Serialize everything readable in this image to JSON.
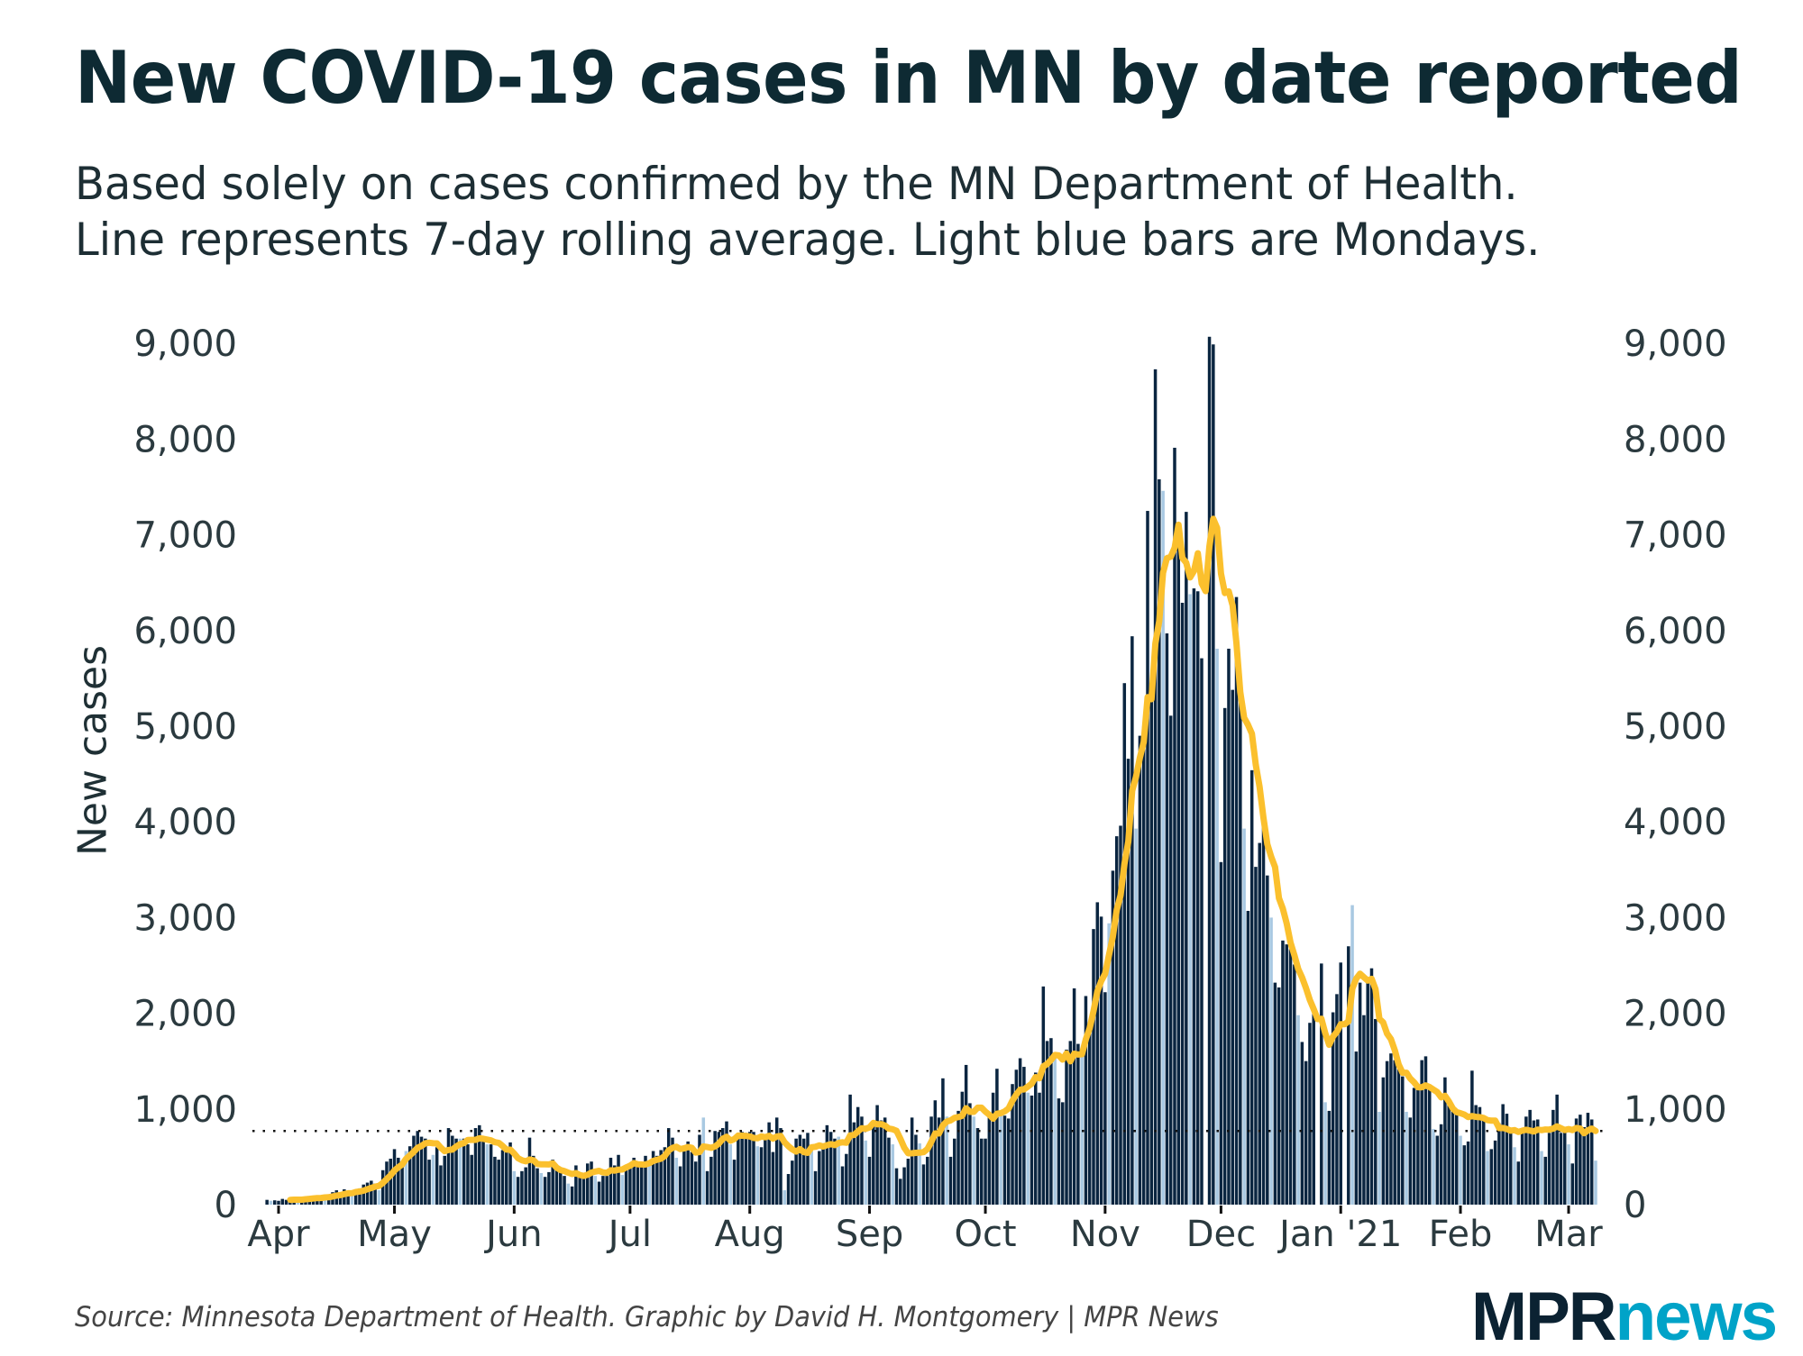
{
  "title": "New COVID-19 cases in MN by date reported",
  "subtitle_lines": [
    "Based solely on cases confirmed by the MN Department of Health.",
    "Line represents 7-day rolling average. Light blue bars are Mondays."
  ],
  "source": "Source: Minnesota Department of Health. Graphic by David H. Montgomery | MPR News",
  "logo": {
    "part1": "MPR",
    "part2": "news"
  },
  "colors": {
    "bar": "#0a2540",
    "monday_bar": "#a9c9e2",
    "line": "#fbc02d",
    "title": "#0e2a33",
    "logo_dark": "#0b2232",
    "logo_accent": "#00a3c8"
  },
  "chart_data": {
    "type": "bar",
    "title": "New COVID-19 cases in MN by date reported",
    "ylabel": "New cases",
    "xlabel": "",
    "ylim": [
      0,
      9000
    ],
    "grid": false,
    "y_ticks": [
      {
        "value": 0,
        "label": "0"
      },
      {
        "value": 1000,
        "label": "1,000"
      },
      {
        "value": 2000,
        "label": "2,000"
      },
      {
        "value": 3000,
        "label": "3,000"
      },
      {
        "value": 4000,
        "label": "4,000"
      },
      {
        "value": 5000,
        "label": "5,000"
      },
      {
        "value": 6000,
        "label": "6,000"
      },
      {
        "value": 7000,
        "label": "7,000"
      },
      {
        "value": 8000,
        "label": "8,000"
      },
      {
        "value": 9000,
        "label": "9,000"
      }
    ],
    "x_ticks": [
      {
        "date": "2020-04-01",
        "label": "Apr"
      },
      {
        "date": "2020-05-01",
        "label": "May"
      },
      {
        "date": "2020-06-01",
        "label": "Jun"
      },
      {
        "date": "2020-07-01",
        "label": "Jul"
      },
      {
        "date": "2020-08-01",
        "label": "Aug"
      },
      {
        "date": "2020-09-01",
        "label": "Sep"
      },
      {
        "date": "2020-10-01",
        "label": "Oct"
      },
      {
        "date": "2020-11-01",
        "label": "Nov"
      },
      {
        "date": "2020-12-01",
        "label": "Dec"
      },
      {
        "date": "2021-01-01",
        "label": "Jan '21"
      },
      {
        "date": "2021-02-01",
        "label": "Feb"
      },
      {
        "date": "2021-03-01",
        "label": "Mar"
      }
    ],
    "x_start": "2020-03-29",
    "x_end": "2021-03-08",
    "reference_line_value": 770,
    "series": [
      {
        "kind": "daily bars (Mondays light blue)",
        "values": [
          50,
          40,
          45,
          40,
          60,
          50,
          65,
          60,
          40,
          50,
          70,
          90,
          80,
          90,
          70,
          80,
          60,
          130,
          150,
          120,
          160,
          130,
          90,
          140,
          170,
          210,
          230,
          250,
          220,
          150,
          360,
          450,
          480,
          580,
          490,
          430,
          560,
          610,
          720,
          770,
          710,
          690,
          470,
          520,
          600,
          410,
          510,
          800,
          720,
          690,
          690,
          690,
          630,
          520,
          800,
          830,
          660,
          630,
          630,
          500,
          470,
          570,
          570,
          650,
          350,
          290,
          350,
          390,
          700,
          510,
          380,
          330,
          290,
          340,
          470,
          380,
          340,
          300,
          220,
          190,
          410,
          330,
          310,
          430,
          450,
          300,
          240,
          300,
          300,
          490,
          410,
          520,
          310,
          390,
          430,
          490,
          400,
          400,
          510,
          410,
          560,
          510,
          570,
          600,
          800,
          700,
          490,
          400,
          560,
          660,
          550,
          450,
          730,
          910,
          350,
          500,
          770,
          760,
          800,
          870,
          630,
          470,
          750,
          760,
          750,
          760,
          760,
          610,
          600,
          690,
          860,
          550,
          910,
          800,
          150,
          320,
          460,
          690,
          730,
          690,
          750,
          560,
          350,
          560,
          610,
          830,
          760,
          690,
          710,
          400,
          530,
          1150,
          860,
          1020,
          920,
          670,
          500,
          860,
          1040,
          880,
          910,
          700,
          630,
          380,
          270,
          390,
          480,
          910,
          730,
          640,
          420,
          500,
          920,
          1090,
          910,
          1320,
          920,
          500,
          690,
          980,
          1180,
          1460,
          1060,
          920,
          800,
          690,
          690,
          960,
          1170,
          1420,
          960,
          930,
          900,
          1260,
          1410,
          1530,
          1440,
          1170,
          1140,
          1380,
          1170,
          2280,
          1710,
          1740,
          1530,
          1110,
          1070,
          1620,
          1710,
          2260,
          1680,
          1560,
          2180,
          1890,
          2880,
          3160,
          3010,
          2220,
          2940,
          3490,
          3850,
          3960,
          5450,
          4660,
          5940,
          3930,
          4900,
          5000,
          7250,
          5300,
          8730,
          7580,
          7460,
          5970,
          5110,
          7910,
          6980,
          6290,
          7240,
          6380,
          6440,
          6410,
          5710,
          0,
          9070,
          8990,
          5810,
          3580,
          5190,
          5810,
          5380,
          6350,
          5370,
          3930,
          3070,
          4540,
          3530,
          3780,
          4080,
          3440,
          3000,
          2320,
          2270,
          2760,
          2720,
          2670,
          2510,
          1980,
          1700,
          1500,
          1900,
          2050,
          0,
          2520,
          1070,
          980,
          2010,
          2200,
          2530,
          0,
          2700,
          3130,
          1600,
          2320,
          1980,
          2320,
          2470,
          1940,
          970,
          1330,
          1500,
          1580,
          1510,
          1420,
          1340,
          970,
          910,
          1220,
          1220,
          1510,
          1550,
          1220,
          790,
          720,
          840,
          1330,
          1100,
          1040,
          940,
          720,
          620,
          660,
          1400,
          1040,
          1020,
          880,
          560,
          580,
          670,
          850,
          1050,
          950,
          750,
          600,
          450,
          760,
          920,
          990,
          880,
          890,
          560,
          500,
          750,
          990,
          1150,
          750,
          760,
          630,
          430,
          900,
          940,
          810,
          960,
          890,
          460
        ]
      },
      {
        "kind": "7-day rolling average line",
        "derived_from": "daily bars"
      }
    ]
  }
}
